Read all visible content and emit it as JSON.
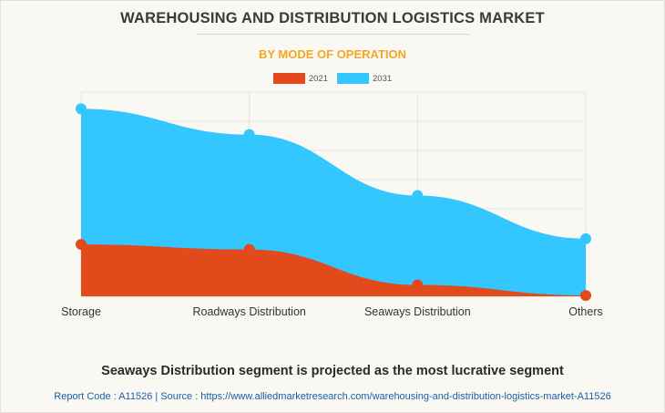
{
  "page": {
    "title": "WAREHOUSING AND DISTRIBUTION LOGISTICS MARKET",
    "subtitle": "BY MODE OF OPERATION",
    "headline": "Seaways Distribution segment is projected as the most lucrative segment",
    "source_line": "Report Code : A11526  |  Source : https://www.alliedmarketresearch.com/warehousing-and-distribution-logistics-market-A11526"
  },
  "colors": {
    "series_2021": "#e24a1c",
    "series_2031": "#33c6ff",
    "subtitle": "#f5a623"
  },
  "chart_data": {
    "type": "area",
    "categories": [
      "Storage",
      "Roadways Distribution",
      "Seaways Distribution",
      "Others"
    ],
    "series": [
      {
        "name": "2021",
        "values": [
          18.3,
          16.5,
          4.0,
          0.3
        ]
      },
      {
        "name": "2031",
        "values": [
          66.1,
          57.0,
          35.5,
          20.3
        ]
      }
    ],
    "ylim": [
      0,
      72
    ],
    "grid": true,
    "legend": "top-center"
  }
}
